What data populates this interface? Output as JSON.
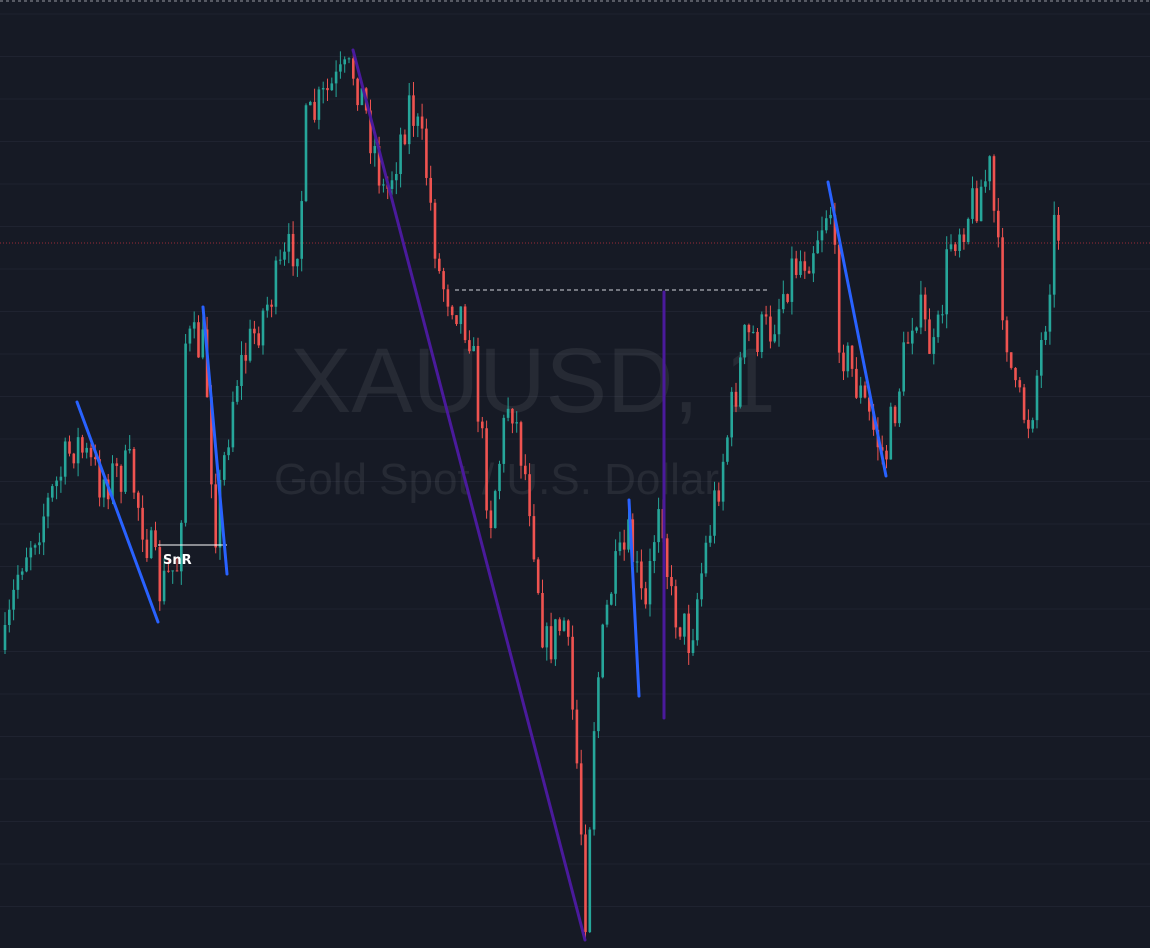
{
  "watermark": {
    "symbol": "XAUUSD, 1",
    "description": "Gold Spot / U.S. Dollar"
  },
  "drawings": {
    "snr_label": "SnR"
  }
}
